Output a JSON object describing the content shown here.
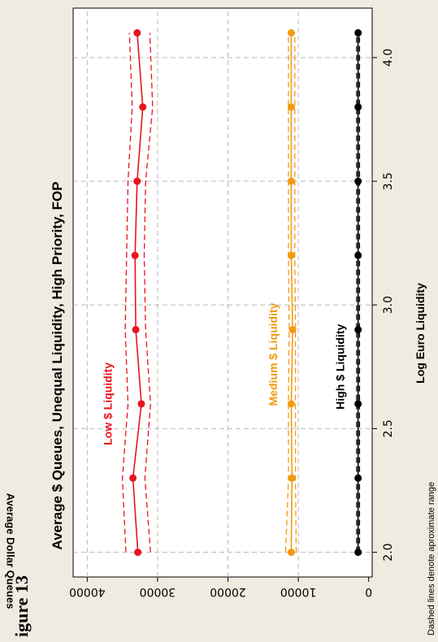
{
  "figure_label": "igure 13",
  "chart_data": {
    "type": "line",
    "title": "Average $ Queues, Unequal Liquidity, High Priority, FOP",
    "xlabel": "Log Euro Liquidity",
    "ylabel": "Average Dollar Queues",
    "note": "Dashed lines denote aproximate range",
    "xlim": [
      1.9,
      4.2
    ],
    "ylim": [
      -500,
      42000
    ],
    "x_ticks": [
      2.0,
      2.5,
      3.0,
      3.5,
      4.0
    ],
    "x_tick_labels": [
      "2.0",
      "2.5",
      "3.0",
      "3.5",
      "4.0"
    ],
    "y_ticks": [
      0,
      10000,
      20000,
      30000,
      40000
    ],
    "y_tick_labels": [
      "0",
      "10000",
      "20000",
      "30000",
      "40000"
    ],
    "grid": true,
    "x": [
      2.0,
      2.3,
      2.6,
      2.9,
      3.2,
      3.5,
      3.8,
      4.1
    ],
    "series": [
      {
        "name": "Low $ Liquidity",
        "color": "#e8141e",
        "values": [
          32800,
          33500,
          32300,
          33100,
          33200,
          32900,
          32100,
          32900
        ],
        "upper": [
          34500,
          35000,
          34200,
          34600,
          34400,
          34200,
          33600,
          34000
        ],
        "lower": [
          31000,
          31800,
          31000,
          31700,
          31900,
          31700,
          30700,
          31100
        ],
        "label_pos": {
          "x": 2.6,
          "y": 36500
        }
      },
      {
        "name": "Medium $ Liquidity",
        "color": "#f39a12",
        "values": [
          11000,
          10900,
          11000,
          10800,
          11000,
          11000,
          11000,
          11000
        ],
        "upper": [
          11800,
          11400,
          11400,
          11300,
          11400,
          11400,
          11400,
          11400
        ],
        "lower": [
          10300,
          10400,
          10400,
          10400,
          10500,
          10500,
          10500,
          10500
        ],
        "label_pos": {
          "x": 2.8,
          "y": 13000
        }
      },
      {
        "name": "High $ Liquidity",
        "color": "#000000",
        "values": [
          1500,
          1500,
          1500,
          1500,
          1500,
          1500,
          1500,
          1500
        ],
        "upper": [
          1700,
          1700,
          1700,
          1700,
          1700,
          1700,
          1700,
          1700
        ],
        "lower": [
          1300,
          1300,
          1300,
          1300,
          1300,
          1300,
          1300,
          1300
        ],
        "label_pos": {
          "x": 2.75,
          "y": 3500
        }
      }
    ]
  }
}
